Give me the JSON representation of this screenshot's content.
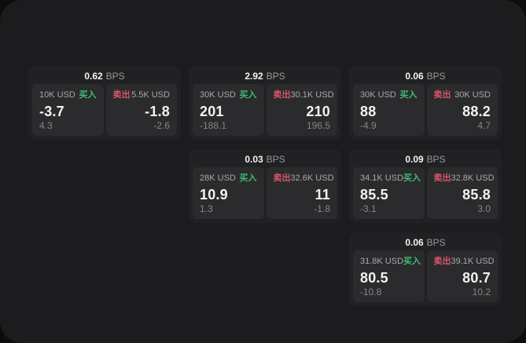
{
  "labels": {
    "bps": "BPS",
    "buy": "买入",
    "sell": "卖出"
  },
  "colors": {
    "outer_bg": "#0c0c0d",
    "container_bg": "#1c1c1e",
    "card_bg": "#212123",
    "panel_bg": "#2b2b2d",
    "buy_green": "#3ebd72",
    "sell_red": "#d9566a",
    "value_white": "#f2f2f3",
    "label_gray": "#a8a8aa",
    "dim_gray": "#86868a"
  },
  "cards": [
    {
      "bps_value": "0.62",
      "col": 1,
      "row": 1,
      "buy": {
        "amount": "10K USD",
        "value": "-3.7",
        "delta": "4.3"
      },
      "sell": {
        "amount": "5.5K USD",
        "value": "-1.8",
        "delta": "-2.6"
      }
    },
    {
      "bps_value": "2.92",
      "col": 2,
      "row": 1,
      "buy": {
        "amount": "30K USD",
        "value": "201",
        "delta": "-188.1"
      },
      "sell": {
        "amount": "30.1K USD",
        "value": "210",
        "delta": "196.5"
      }
    },
    {
      "bps_value": "0.06",
      "col": 3,
      "row": 1,
      "buy": {
        "amount": "30K USD",
        "value": "88",
        "delta": "-4.9"
      },
      "sell": {
        "amount": "30K USD",
        "value": "88.2",
        "delta": "4.7"
      }
    },
    {
      "bps_value": "0.03",
      "col": 2,
      "row": 2,
      "buy": {
        "amount": "28K USD",
        "value": "10.9",
        "delta": "1.3"
      },
      "sell": {
        "amount": "32.6K USD",
        "value": "11",
        "delta": "-1.8"
      }
    },
    {
      "bps_value": "0.09",
      "col": 3,
      "row": 2,
      "buy": {
        "amount": "34.1K USD",
        "value": "85.5",
        "delta": "-3.1"
      },
      "sell": {
        "amount": "32.8K USD",
        "value": "85.8",
        "delta": "3.0"
      }
    },
    {
      "bps_value": "0.06",
      "col": 3,
      "row": 3,
      "buy": {
        "amount": "31.8K USD",
        "value": "80.5",
        "delta": "-10.8"
      },
      "sell": {
        "amount": "39.1K USD",
        "value": "80.7",
        "delta": "10.2"
      }
    }
  ]
}
